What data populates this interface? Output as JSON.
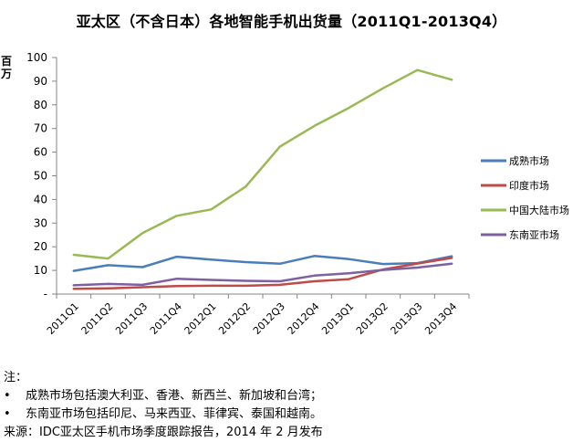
{
  "chart_data": {
    "type": "line",
    "title": "亚太区（不含日本）各地智能手机出货量（2011Q1-2013Q4）",
    "ylabel": "百万",
    "ylim": [
      0,
      100
    ],
    "yticks": [
      "-",
      "10",
      "20",
      "30",
      "40",
      "50",
      "60",
      "70",
      "80",
      "90",
      "100"
    ],
    "categories": [
      "2011Q1",
      "2011Q2",
      "2011Q3",
      "2011Q4",
      "2012Q1",
      "2012Q2",
      "2012Q3",
      "2012Q4",
      "2013Q1",
      "2013Q2",
      "2013Q3",
      "2013Q4"
    ],
    "legend_position": "right",
    "series": [
      {
        "name": "成熟市场",
        "color": "#4a7ebb",
        "values": [
          9.8,
          12.2,
          11.4,
          15.8,
          14.6,
          13.5,
          12.8,
          16.1,
          14.8,
          12.7,
          13.1,
          16.0
        ]
      },
      {
        "name": "印度市场",
        "color": "#be4b48",
        "values": [
          2.2,
          2.4,
          2.9,
          3.4,
          3.5,
          3.5,
          3.9,
          5.4,
          6.3,
          10.4,
          12.9,
          15.3
        ]
      },
      {
        "name": "中国大陆市场",
        "color": "#98b954",
        "values": [
          16.6,
          15.0,
          25.8,
          33.1,
          35.8,
          45.4,
          62.3,
          71.1,
          78.7,
          87.0,
          94.7,
          90.6
        ]
      },
      {
        "name": "东南亚市场",
        "color": "#7d60a0",
        "values": [
          3.7,
          4.3,
          3.9,
          6.5,
          6.0,
          5.6,
          5.4,
          7.8,
          8.8,
          10.2,
          11.2,
          12.8
        ]
      }
    ]
  },
  "notes": {
    "heading": "注：",
    "items": [
      "成熟市场包括澳大利亚、香港、新西兰、新加坡和台湾；",
      "东南亚市场包括印尼、马来西亚、菲律宾、泰国和越南。"
    ],
    "bullet": "•",
    "source": "来源：IDC亚太区手机市场季度跟踪报告，2014 年 2 月发布"
  }
}
